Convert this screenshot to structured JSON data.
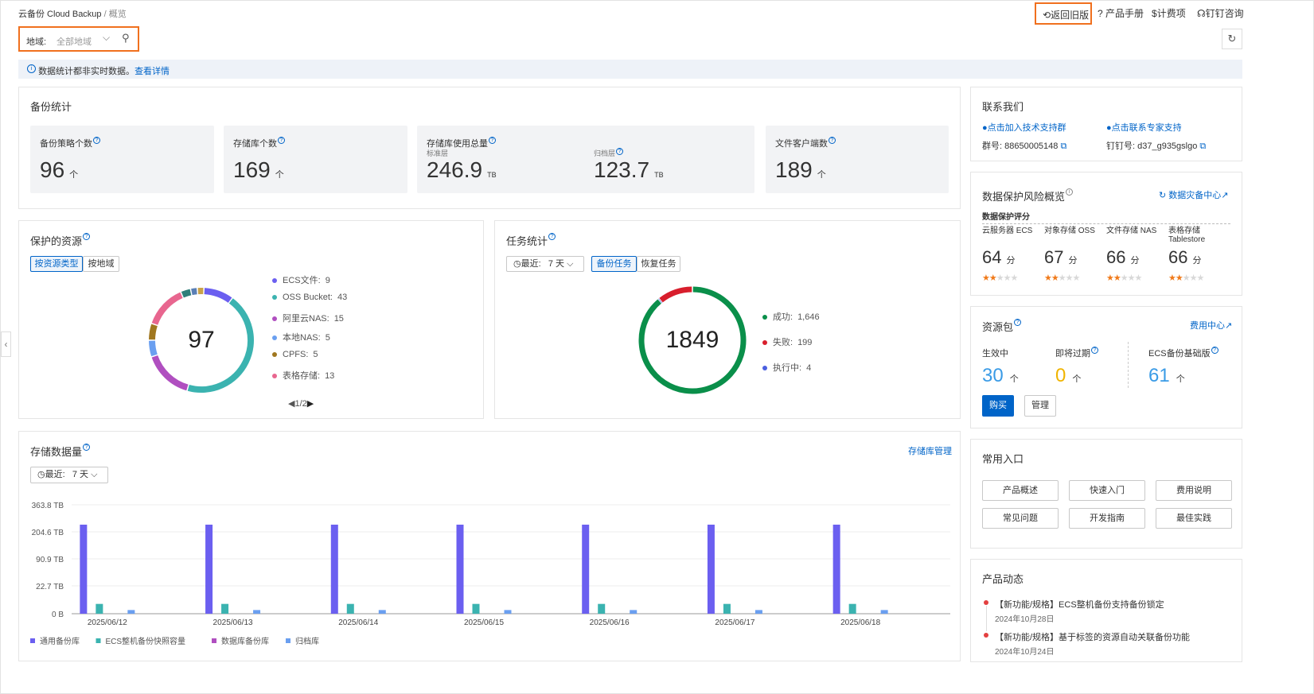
{
  "breadcrumb": {
    "root": "云备份 Cloud Backup",
    "sep": "/",
    "current": "概览"
  },
  "topnav": {
    "back_old": "返回旧版",
    "manual": "产品手册",
    "billing": "计费项",
    "dingtalk": "钉钉咨询"
  },
  "region": {
    "label": "地域:",
    "value": "全部地域"
  },
  "notice": {
    "text": "数据统计都非实时数据。",
    "link": "查看详情"
  },
  "backup_stats": {
    "title": "备份统计",
    "policies": {
      "label": "备份策略个数",
      "value": "96",
      "unit": "个"
    },
    "vaults": {
      "label": "存储库个数",
      "value": "169",
      "unit": "个"
    },
    "usage": {
      "label": "存储库使用总量",
      "std_label": "标准层",
      "std_value": "246.9",
      "std_unit": "TB",
      "arch_label": "归档层",
      "arch_value": "123.7",
      "arch_unit": "TB"
    },
    "clients": {
      "label": "文件客户端数",
      "value": "189",
      "unit": "个"
    }
  },
  "protected": {
    "title": "保护的资源",
    "tabs": [
      "按资源类型",
      "按地域"
    ],
    "total": "97",
    "legend": [
      {
        "name": "ECS文件:",
        "value": "9",
        "color": "#6b5ff0"
      },
      {
        "name": "OSS Bucket:",
        "value": "43",
        "color": "#3bb3b0"
      },
      {
        "name": "阿里云NAS:",
        "value": "15",
        "color": "#b04fc0"
      },
      {
        "name": "本地NAS:",
        "value": "5",
        "color": "#6a9ff0"
      },
      {
        "name": "CPFS:",
        "value": "5",
        "color": "#a0771f"
      },
      {
        "name": "表格存储:",
        "value": "13",
        "color": "#e8668f"
      }
    ],
    "pager": "1/2"
  },
  "tasks": {
    "title": "任务统计",
    "range_label": "最近:",
    "range_value": "7 天",
    "tabs": [
      "备份任务",
      "恢复任务"
    ],
    "total": "1849",
    "legend": [
      {
        "name": "成功:",
        "value": "1,646",
        "color": "#0a8f4a"
      },
      {
        "name": "失败:",
        "value": "199",
        "color": "#d81e2c"
      },
      {
        "name": "执行中:",
        "value": "4",
        "color": "#4b5fe0"
      }
    ]
  },
  "storage": {
    "title": "存储数据量",
    "manage_link": "存储库管理",
    "range_label": "最近:",
    "range_value": "7 天"
  },
  "chart_data": {
    "type": "bar",
    "categories": [
      "2025/06/12",
      "2025/06/13",
      "2025/06/14",
      "2025/06/15",
      "2025/06/16",
      "2025/06/17",
      "2025/06/18"
    ],
    "y_ticks": [
      "363.8 TB",
      "204.6 TB",
      "90.9 TB",
      "22.7 TB",
      "0 B"
    ],
    "series": [
      {
        "name": "通用备份库",
        "color": "#6b5ff0",
        "values": [
          246.9,
          246.9,
          246.9,
          246.9,
          246.9,
          246.9,
          246.9
        ]
      },
      {
        "name": "ECS整机备份快照容量",
        "color": "#3bb3b0",
        "values": [
          8,
          8,
          8,
          8,
          8,
          8,
          8
        ]
      },
      {
        "name": "数据库备份库",
        "color": "#b04fc0",
        "values": [
          0,
          0,
          0,
          0,
          0,
          0,
          0
        ]
      },
      {
        "name": "归档库",
        "color": "#6a9ff0",
        "values": [
          3,
          3,
          3,
          3,
          3,
          3,
          3
        ]
      }
    ]
  },
  "contact": {
    "title": "联系我们",
    "join_group": "点击加入技术支持群",
    "expert": "点击联系专家支持",
    "group_no": "群号: 88650005148",
    "ding_no": "钉钉号: d37_g935gslgo"
  },
  "risk": {
    "title": "数据保护风险概览",
    "center_link": "数据灾备中心",
    "score_label": "数据保护评分",
    "items": [
      {
        "name": "云服务器 ECS",
        "name2": "",
        "score": "64",
        "unit": "分"
      },
      {
        "name": "对象存储 OSS",
        "name2": "",
        "score": "67",
        "unit": "分"
      },
      {
        "name": "文件存储 NAS",
        "name2": "",
        "score": "66",
        "unit": "分"
      },
      {
        "name": "表格存储",
        "name2": "Tablestore",
        "score": "66",
        "unit": "分"
      }
    ],
    "stars_filled": 2,
    "stars_total": 5
  },
  "package": {
    "title": "资源包",
    "fee_link": "费用中心",
    "active_label": "生效中",
    "active_value": "30",
    "active_unit": "个",
    "expiring_label": "即将过期",
    "expiring_value": "0",
    "expiring_unit": "个",
    "ecs_label": "ECS备份基础版",
    "ecs_value": "61",
    "ecs_unit": "个",
    "buy": "购买",
    "manage": "管理"
  },
  "shortcuts": {
    "title": "常用入口",
    "items": [
      "产品概述",
      "快速入门",
      "费用说明",
      "常见问题",
      "开发指南",
      "最佳实践"
    ]
  },
  "news": {
    "title": "产品动态",
    "items": [
      {
        "text": "【新功能/规格】ECS整机备份支持备份锁定",
        "date": "2024年10月28日"
      },
      {
        "text": "【新功能/规格】基于标签的资源自动关联备份功能",
        "date": "2024年10月24日"
      }
    ]
  }
}
